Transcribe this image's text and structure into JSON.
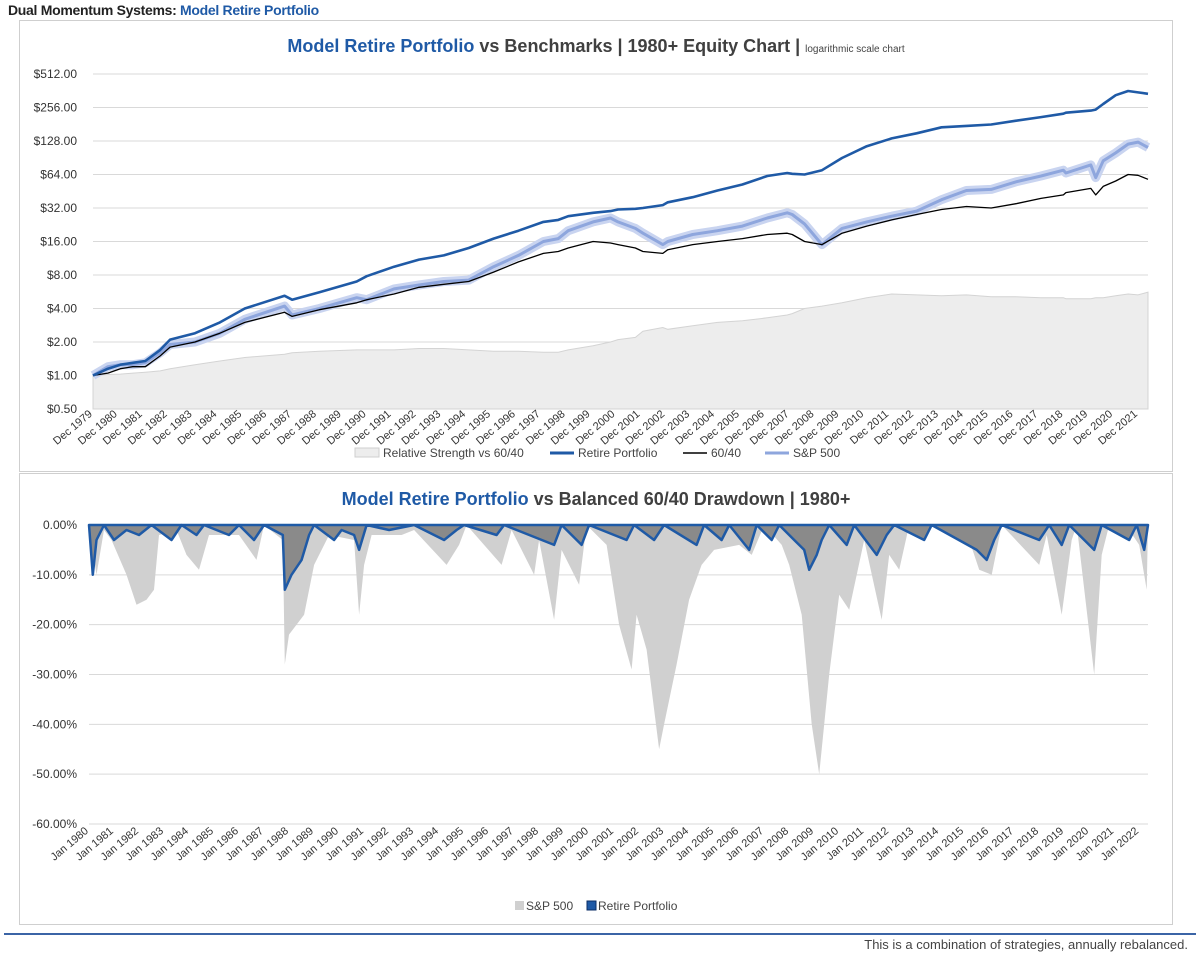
{
  "header": {
    "prefix": "Dual Momentum Systems:",
    "brand": "Model Retire Portfolio"
  },
  "footer": {
    "note": "This is a combination of strategies, annually rebalanced."
  },
  "colors": {
    "retire": "#1f5aa6",
    "sixty_forty": "#000000",
    "sp500": "#8ea6dd",
    "relative": "#ededed",
    "sp_drawdown": "#d0d0d0",
    "grid": "#d9d9d9"
  },
  "chart_data": [
    {
      "type": "line",
      "title_highlight": "Model Retire Portfolio",
      "title_rest": "vs Benchmarks | 1980+ Equity Chart |",
      "title_note": "logarithmic scale chart",
      "y_scale": "log2",
      "ylim": [
        0.5,
        512
      ],
      "y_ticks": [
        "$0.50",
        "$1.00",
        "$2.00",
        "$4.00",
        "$8.00",
        "$16.00",
        "$32.00",
        "$64.00",
        "$128.00",
        "$256.00",
        "$512.00"
      ],
      "x_ticks": [
        "Dec 1979",
        "Dec 1980",
        "Dec 1981",
        "Dec 1982",
        "Dec 1983",
        "Dec 1984",
        "Dec 1985",
        "Dec 1986",
        "Dec 1987",
        "Dec 1988",
        "Dec 1989",
        "Dec 1990",
        "Dec 1991",
        "Dec 1992",
        "Dec 1993",
        "Dec 1994",
        "Dec 1995",
        "Dec 1996",
        "Dec 1997",
        "Dec 1998",
        "Dec 1999",
        "Dec 2000",
        "Dec 2001",
        "Dec 2002",
        "Dec 2003",
        "Dec 2004",
        "Dec 2005",
        "Dec 2006",
        "Dec 2007",
        "Dec 2008",
        "Dec 2009",
        "Dec 2010",
        "Dec 2011",
        "Dec 2012",
        "Dec 2013",
        "Dec 2014",
        "Dec 2015",
        "Dec 2016",
        "Dec 2017",
        "Dec 2018",
        "Dec 2019",
        "Dec 2020",
        "Dec 2021"
      ],
      "grid": true,
      "legend_position": "bottom",
      "x": [
        1979.9,
        1980.5,
        1981.0,
        1981.5,
        1982.0,
        1982.6,
        1983.0,
        1984.0,
        1985.0,
        1986.0,
        1987.6,
        1987.9,
        1989.0,
        1990.5,
        1990.9,
        1992.0,
        1993.0,
        1994.0,
        1995.0,
        1996.0,
        1997.0,
        1998.0,
        1998.6,
        1999.0,
        2000.0,
        2000.7,
        2001.0,
        2001.7,
        2002.0,
        2002.8,
        2003.0,
        2004.0,
        2005.0,
        2006.0,
        2007.0,
        2007.8,
        2008.0,
        2008.5,
        2009.2,
        2010.0,
        2011.0,
        2012.0,
        2013.0,
        2014.0,
        2015.0,
        2016.0,
        2017.0,
        2018.0,
        2018.9,
        2019.0,
        2020.0,
        2020.2,
        2020.5,
        2021.0,
        2021.5,
        2021.9,
        2022.3
      ],
      "series": [
        {
          "name": "Relative Strength vs 60/40",
          "kind": "area",
          "values": [
            1.0,
            1.02,
            1.03,
            1.05,
            1.07,
            1.1,
            1.15,
            1.25,
            1.35,
            1.45,
            1.55,
            1.6,
            1.65,
            1.7,
            1.7,
            1.7,
            1.75,
            1.75,
            1.7,
            1.65,
            1.65,
            1.62,
            1.62,
            1.7,
            1.85,
            2.0,
            2.1,
            2.2,
            2.5,
            2.7,
            2.6,
            2.8,
            3.0,
            3.1,
            3.3,
            3.5,
            3.6,
            4.0,
            4.2,
            4.5,
            5.0,
            5.4,
            5.3,
            5.2,
            5.3,
            5.1,
            5.1,
            5.0,
            5.0,
            4.9,
            4.9,
            5.0,
            5.0,
            5.2,
            5.4,
            5.3,
            5.6
          ]
        },
        {
          "name": "Retire Portfolio",
          "kind": "line",
          "values": [
            1.0,
            1.15,
            1.25,
            1.3,
            1.35,
            1.7,
            2.1,
            2.4,
            3.0,
            4.0,
            5.2,
            4.8,
            5.6,
            7.0,
            7.8,
            9.5,
            11.0,
            12.0,
            14.0,
            17.0,
            20.0,
            24.0,
            25.0,
            27.0,
            29.0,
            30.0,
            31.0,
            31.5,
            32.0,
            34.0,
            36.0,
            40.0,
            46.0,
            52.0,
            62.0,
            66.0,
            65.0,
            64.0,
            70.0,
            90.0,
            115.0,
            135.0,
            150.0,
            170.0,
            175.0,
            180.0,
            195.0,
            210.0,
            225.0,
            230.0,
            240.0,
            245.0,
            275.0,
            330.0,
            360.0,
            350.0,
            340.0
          ]
        },
        {
          "name": "60/40",
          "kind": "line",
          "values": [
            1.0,
            1.05,
            1.15,
            1.2,
            1.2,
            1.5,
            1.8,
            2.0,
            2.4,
            3.0,
            3.7,
            3.4,
            3.9,
            4.5,
            4.8,
            5.4,
            6.2,
            6.6,
            7.0,
            8.5,
            10.5,
            12.5,
            13.0,
            14.0,
            16.0,
            15.5,
            15.0,
            14.0,
            13.0,
            12.5,
            13.5,
            15.0,
            16.0,
            17.0,
            18.5,
            19.0,
            18.5,
            16.0,
            15.0,
            19.0,
            22.0,
            25.0,
            28.0,
            31.0,
            33.0,
            32.0,
            35.0,
            39.0,
            42.0,
            44.0,
            48.0,
            42.0,
            50.0,
            56.0,
            64.0,
            63.0,
            58.0
          ]
        },
        {
          "name": "S&P 500",
          "kind": "line",
          "values": [
            1.0,
            1.2,
            1.25,
            1.25,
            1.3,
            1.6,
            1.9,
            2.0,
            2.4,
            3.2,
            4.2,
            3.5,
            4.0,
            5.0,
            4.8,
            6.0,
            6.5,
            7.0,
            7.2,
            9.5,
            12.0,
            16.0,
            17.0,
            20.0,
            24.0,
            26.0,
            24.0,
            21.0,
            19.0,
            15.0,
            16.0,
            18.5,
            20.0,
            22.0,
            26.0,
            29.0,
            28.0,
            23.0,
            15.0,
            21.0,
            24.0,
            27.0,
            30.0,
            38.0,
            46.0,
            47.0,
            55.0,
            62.0,
            70.0,
            66.0,
            78.0,
            60.0,
            85.0,
            100.0,
            120.0,
            125.0,
            112.0
          ]
        }
      ]
    },
    {
      "type": "area",
      "title_highlight": "Model Retire Portfolio",
      "title_rest": "vs Balanced 60/40 Drawdown | 1980+",
      "ylim": [
        -60,
        0
      ],
      "y_ticks": [
        "0.00%",
        "-10.00%",
        "-20.00%",
        "-30.00%",
        "-40.00%",
        "-50.00%",
        "-60.00%"
      ],
      "x_ticks": [
        "Jan 1980",
        "Jan 1981",
        "Jan 1982",
        "Jan 1983",
        "Jan 1984",
        "Jan 1985",
        "Jan 1986",
        "Jan 1987",
        "Jan 1988",
        "Jan 1989",
        "Jan 1990",
        "Jan 1991",
        "Jan 1992",
        "Jan 1993",
        "Jan 1994",
        "Jan 1995",
        "Jan 1996",
        "Jan 1997",
        "Jan 1998",
        "Jan 1999",
        "Jan 2000",
        "Jan 2001",
        "Jan 2002",
        "Jan 2003",
        "Jan 2004",
        "Jan 2005",
        "Jan 2006",
        "Jan 2007",
        "Jan 2008",
        "Jan 2009",
        "Jan 2010",
        "Jan 2011",
        "Jan 2012",
        "Jan 2013",
        "Jan 2014",
        "Jan 2015",
        "Jan 2016",
        "Jan 2017",
        "Jan 2018",
        "Jan 2019",
        "Jan 2020",
        "Jan 2021",
        "Jan 2022"
      ],
      "grid": true,
      "legend_position": "bottom",
      "series": [
        {
          "name": "S&P 500",
          "kind": "area",
          "points": [
            [
              1980.0,
              0
            ],
            [
              1980.3,
              -10
            ],
            [
              1980.6,
              -1
            ],
            [
              1980.9,
              -3
            ],
            [
              1981.5,
              -10
            ],
            [
              1981.9,
              -16
            ],
            [
              1982.3,
              -15
            ],
            [
              1982.6,
              -13
            ],
            [
              1982.8,
              -2
            ],
            [
              1983.5,
              -1
            ],
            [
              1983.9,
              -6
            ],
            [
              1984.4,
              -9
            ],
            [
              1984.8,
              -2
            ],
            [
              1986.0,
              -2
            ],
            [
              1986.7,
              -7
            ],
            [
              1987.0,
              0
            ],
            [
              1987.75,
              -3
            ],
            [
              1987.83,
              -28
            ],
            [
              1988.0,
              -22
            ],
            [
              1988.6,
              -18
            ],
            [
              1989.0,
              -8
            ],
            [
              1989.6,
              -2
            ],
            [
              1990.6,
              -3
            ],
            [
              1990.8,
              -18
            ],
            [
              1991.0,
              -8
            ],
            [
              1991.3,
              -2
            ],
            [
              1992.5,
              -2
            ],
            [
              1993.0,
              -1
            ],
            [
              1994.3,
              -8
            ],
            [
              1994.8,
              -4
            ],
            [
              1995.1,
              0
            ],
            [
              1996.5,
              -8
            ],
            [
              1996.9,
              -1
            ],
            [
              1997.8,
              -10
            ],
            [
              1998.0,
              -3
            ],
            [
              1998.6,
              -19
            ],
            [
              1998.9,
              -5
            ],
            [
              1999.6,
              -12
            ],
            [
              1999.9,
              0
            ],
            [
              2000.3,
              -2
            ],
            [
              2000.7,
              -4
            ],
            [
              2001.2,
              -20
            ],
            [
              2001.7,
              -29
            ],
            [
              2001.9,
              -18
            ],
            [
              2002.3,
              -25
            ],
            [
              2002.8,
              -45
            ],
            [
              2003.0,
              -40
            ],
            [
              2003.5,
              -28
            ],
            [
              2004.0,
              -15
            ],
            [
              2004.5,
              -8
            ],
            [
              2005.0,
              -5
            ],
            [
              2006.0,
              -4
            ],
            [
              2006.5,
              -6
            ],
            [
              2007.0,
              0
            ],
            [
              2007.7,
              -4
            ],
            [
              2008.0,
              -8
            ],
            [
              2008.5,
              -18
            ],
            [
              2008.9,
              -40
            ],
            [
              2009.2,
              -50
            ],
            [
              2009.6,
              -30
            ],
            [
              2010.0,
              -14
            ],
            [
              2010.4,
              -17
            ],
            [
              2011.0,
              -3
            ],
            [
              2011.7,
              -19
            ],
            [
              2012.0,
              -6
            ],
            [
              2012.4,
              -9
            ],
            [
              2012.8,
              0
            ],
            [
              2015.0,
              0
            ],
            [
              2015.6,
              -9
            ],
            [
              2016.1,
              -10
            ],
            [
              2016.5,
              0
            ],
            [
              2018.0,
              -8
            ],
            [
              2018.3,
              -2
            ],
            [
              2018.9,
              -18
            ],
            [
              2019.3,
              -3
            ],
            [
              2019.5,
              0
            ],
            [
              2020.2,
              -30
            ],
            [
              2020.5,
              -6
            ],
            [
              2020.8,
              0
            ],
            [
              2021.6,
              -1
            ],
            [
              2022.0,
              -4
            ],
            [
              2022.3,
              -13
            ],
            [
              2022.35,
              0
            ]
          ]
        },
        {
          "name": "Retire Portfolio",
          "kind": "area",
          "points": [
            [
              1980.0,
              0
            ],
            [
              1980.15,
              -10
            ],
            [
              1980.3,
              -3
            ],
            [
              1980.6,
              0
            ],
            [
              1981.0,
              -3
            ],
            [
              1981.5,
              -1
            ],
            [
              1982.0,
              -2
            ],
            [
              1982.5,
              0
            ],
            [
              1983.3,
              -3
            ],
            [
              1983.7,
              0
            ],
            [
              1984.3,
              -2
            ],
            [
              1984.6,
              0
            ],
            [
              1985.6,
              -2
            ],
            [
              1986.0,
              0
            ],
            [
              1986.6,
              -3
            ],
            [
              1987.0,
              0
            ],
            [
              1987.75,
              -2
            ],
            [
              1987.83,
              -13
            ],
            [
              1988.1,
              -10
            ],
            [
              1988.5,
              -7
            ],
            [
              1988.8,
              -2
            ],
            [
              1989.0,
              0
            ],
            [
              1989.8,
              -3
            ],
            [
              1990.1,
              -1
            ],
            [
              1990.6,
              -2
            ],
            [
              1990.8,
              -5
            ],
            [
              1991.1,
              0
            ],
            [
              1992.0,
              -1
            ],
            [
              1993.0,
              0
            ],
            [
              1994.2,
              -3
            ],
            [
              1994.7,
              -1
            ],
            [
              1995.0,
              0
            ],
            [
              1996.3,
              -2
            ],
            [
              1996.6,
              0
            ],
            [
              1998.6,
              -4
            ],
            [
              1998.9,
              0
            ],
            [
              1999.7,
              -4
            ],
            [
              2000.0,
              0
            ],
            [
              2001.5,
              -3
            ],
            [
              2001.8,
              0
            ],
            [
              2002.6,
              -3
            ],
            [
              2003.0,
              0
            ],
            [
              2004.3,
              -4
            ],
            [
              2004.6,
              0
            ],
            [
              2005.3,
              -3
            ],
            [
              2005.6,
              0
            ],
            [
              2006.4,
              -5
            ],
            [
              2006.7,
              0
            ],
            [
              2007.3,
              -3
            ],
            [
              2007.6,
              0
            ],
            [
              2008.2,
              -3
            ],
            [
              2008.6,
              -5
            ],
            [
              2008.8,
              -9
            ],
            [
              2009.1,
              -6
            ],
            [
              2009.3,
              -3
            ],
            [
              2009.6,
              0
            ],
            [
              2010.3,
              -4
            ],
            [
              2010.6,
              0
            ],
            [
              2011.5,
              -6
            ],
            [
              2011.9,
              -2
            ],
            [
              2012.2,
              0
            ],
            [
              2013.4,
              -3
            ],
            [
              2013.7,
              0
            ],
            [
              2015.5,
              -5
            ],
            [
              2015.9,
              -7
            ],
            [
              2016.2,
              -3
            ],
            [
              2016.5,
              0
            ],
            [
              2018.0,
              -3
            ],
            [
              2018.4,
              0
            ],
            [
              2018.9,
              -4
            ],
            [
              2019.2,
              0
            ],
            [
              2020.2,
              -5
            ],
            [
              2020.5,
              0
            ],
            [
              2021.6,
              -3
            ],
            [
              2021.9,
              0
            ],
            [
              2022.2,
              -5
            ],
            [
              2022.35,
              0
            ]
          ]
        }
      ]
    }
  ]
}
